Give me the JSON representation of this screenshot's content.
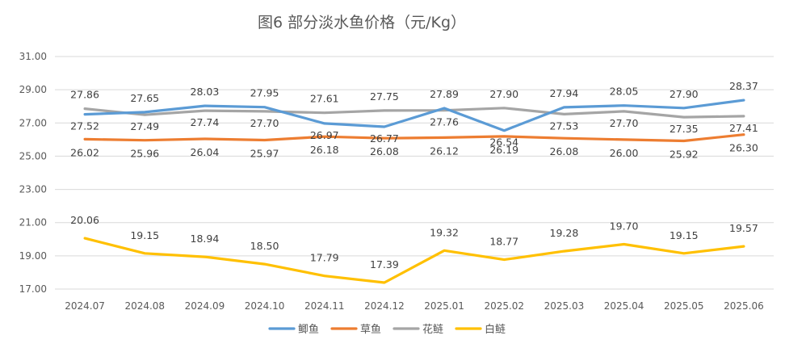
{
  "chart_data": {
    "type": "line",
    "title": "图6  部分淡水鱼价格（元/Kg）",
    "xlabel": "",
    "ylabel": "",
    "categories": [
      "2024.07",
      "2024.08",
      "2024.09",
      "2024.10",
      "2024.11",
      "2024.12",
      "2025.01",
      "2025.02",
      "2025.03",
      "2025.04",
      "2025.05",
      "2025.06"
    ],
    "ylim": [
      17,
      31
    ],
    "yticks": [
      "17.00",
      "19.00",
      "21.00",
      "23.00",
      "25.00",
      "27.00",
      "29.00",
      "31.00"
    ],
    "grid": true,
    "legend_position": "bottom",
    "series": [
      {
        "name": "鲫鱼",
        "color": "#5b9bd5",
        "values": [
          27.52,
          27.65,
          28.03,
          27.95,
          26.97,
          26.77,
          27.89,
          26.54,
          27.94,
          28.05,
          27.9,
          28.37
        ],
        "labels": [
          "27.52",
          "27.65",
          "28.03",
          "27.95",
          "26.97",
          "26.77",
          "27.89",
          "26.54",
          "27.94",
          "28.05",
          "27.90",
          "28.37"
        ]
      },
      {
        "name": "草鱼",
        "color": "#ed7d31",
        "values": [
          26.02,
          25.96,
          26.04,
          25.97,
          26.18,
          26.08,
          26.12,
          26.19,
          26.08,
          26.0,
          25.92,
          26.3
        ],
        "labels": [
          "26.02",
          "25.96",
          "26.04",
          "25.97",
          "26.18",
          "26.08",
          "26.12",
          "26.19",
          "26.08",
          "26.00",
          "25.92",
          "26.30"
        ]
      },
      {
        "name": "花鲢",
        "color": "#a5a5a5",
        "values": [
          27.86,
          27.49,
          27.74,
          27.7,
          27.61,
          27.75,
          27.76,
          27.9,
          27.53,
          27.7,
          27.35,
          27.41
        ],
        "labels": [
          "27.86",
          "27.49",
          "27.74",
          "27.70",
          "27.61",
          "27.75",
          "27.76",
          "27.90",
          "27.53",
          "27.70",
          "27.35",
          "27.41"
        ]
      },
      {
        "name": "白鲢",
        "color": "#ffc000",
        "values": [
          20.06,
          19.15,
          18.94,
          18.5,
          17.79,
          17.39,
          19.32,
          18.77,
          19.28,
          19.7,
          19.15,
          19.57
        ],
        "labels": [
          "20.06",
          "19.15",
          "18.94",
          "18.50",
          "17.79",
          "17.39",
          "19.32",
          "18.77",
          "19.28",
          "19.70",
          "19.15",
          "19.57"
        ]
      }
    ]
  }
}
